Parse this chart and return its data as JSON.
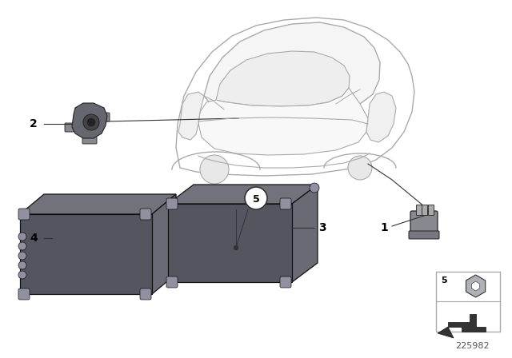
{
  "bg_color": "#ffffff",
  "diagram_id": "225982",
  "car_line_color": "#aaaaaa",
  "car_fill_color": "#ffffff",
  "box_dark": "#555560",
  "box_mid": "#6a6a75",
  "box_light": "#808090",
  "box_top": "#72727d",
  "label_line_color": "#333333",
  "part1_color": "#888890",
  "part2_color": "#777780"
}
